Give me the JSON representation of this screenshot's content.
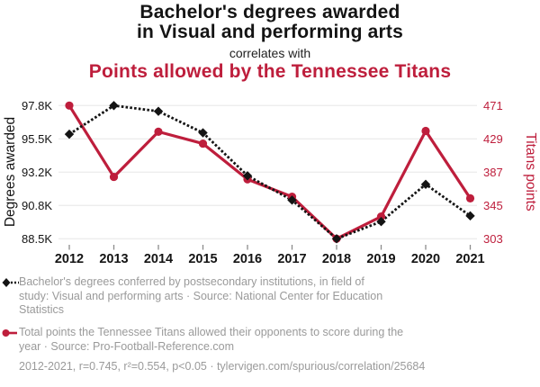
{
  "header": {
    "title_line1": "Bachelor's degrees awarded",
    "title_line2": "in Visual and performing arts",
    "connector": "correlates with",
    "subtitle": "Points allowed by the Tennessee Titans"
  },
  "colors": {
    "accent_red": "#be1e3c",
    "series_black": "#141414",
    "legend_gray": "#9a9a9a",
    "gridline": "#ededed",
    "tick": "#8c8c8c"
  },
  "chart_data": {
    "type": "line",
    "x": [
      2012,
      2013,
      2014,
      2015,
      2016,
      2017,
      2018,
      2019,
      2020,
      2021
    ],
    "x_ticks": [
      "2012",
      "2013",
      "2014",
      "2015",
      "2016",
      "2017",
      "2018",
      "2019",
      "2020",
      "2021"
    ],
    "series": [
      {
        "name": "Bachelor's degrees awarded in Visual and performing arts",
        "axis": "left",
        "style": "dotted-diamond",
        "color": "#141414",
        "values": [
          95800,
          97800,
          97400,
          95900,
          92900,
          91200,
          88500,
          89700,
          92300,
          90100
        ]
      },
      {
        "name": "Points allowed by the Tennessee Titans",
        "axis": "right",
        "style": "solid-circle",
        "color": "#be1e3c",
        "values": [
          471,
          381,
          438,
          423,
          378,
          356,
          303,
          331,
          439,
          354
        ]
      }
    ],
    "left_axis": {
      "label": "Degrees awarded",
      "ticks": [
        "97.8K",
        "95.5K",
        "93.2K",
        "90.8K",
        "88.5K"
      ],
      "range": [
        88500,
        97800
      ]
    },
    "right_axis": {
      "label": "Titans points",
      "ticks": [
        "471",
        "429",
        "387",
        "345",
        "303"
      ],
      "range": [
        303,
        471
      ]
    },
    "grid": true,
    "legend_position": "below"
  },
  "legend": {
    "entries": [
      {
        "marker": "black-diamond-dotted",
        "lines": [
          "Bachelor's degrees conferred by postsecondary institutions, in field of",
          "study: Visual and performing arts · Source: National Center for Education",
          "Statistics"
        ]
      },
      {
        "marker": "red-circle-solid",
        "lines": [
          "Total points the Tennessee Titans allowed their opponents to score during the",
          "year · Source: Pro-Football-Reference.com"
        ]
      }
    ]
  },
  "footer": {
    "text": "2012-2021, r=0.745, r²=0.554, p<0.05 · tylervigen.com/spurious/correlation/25684"
  }
}
